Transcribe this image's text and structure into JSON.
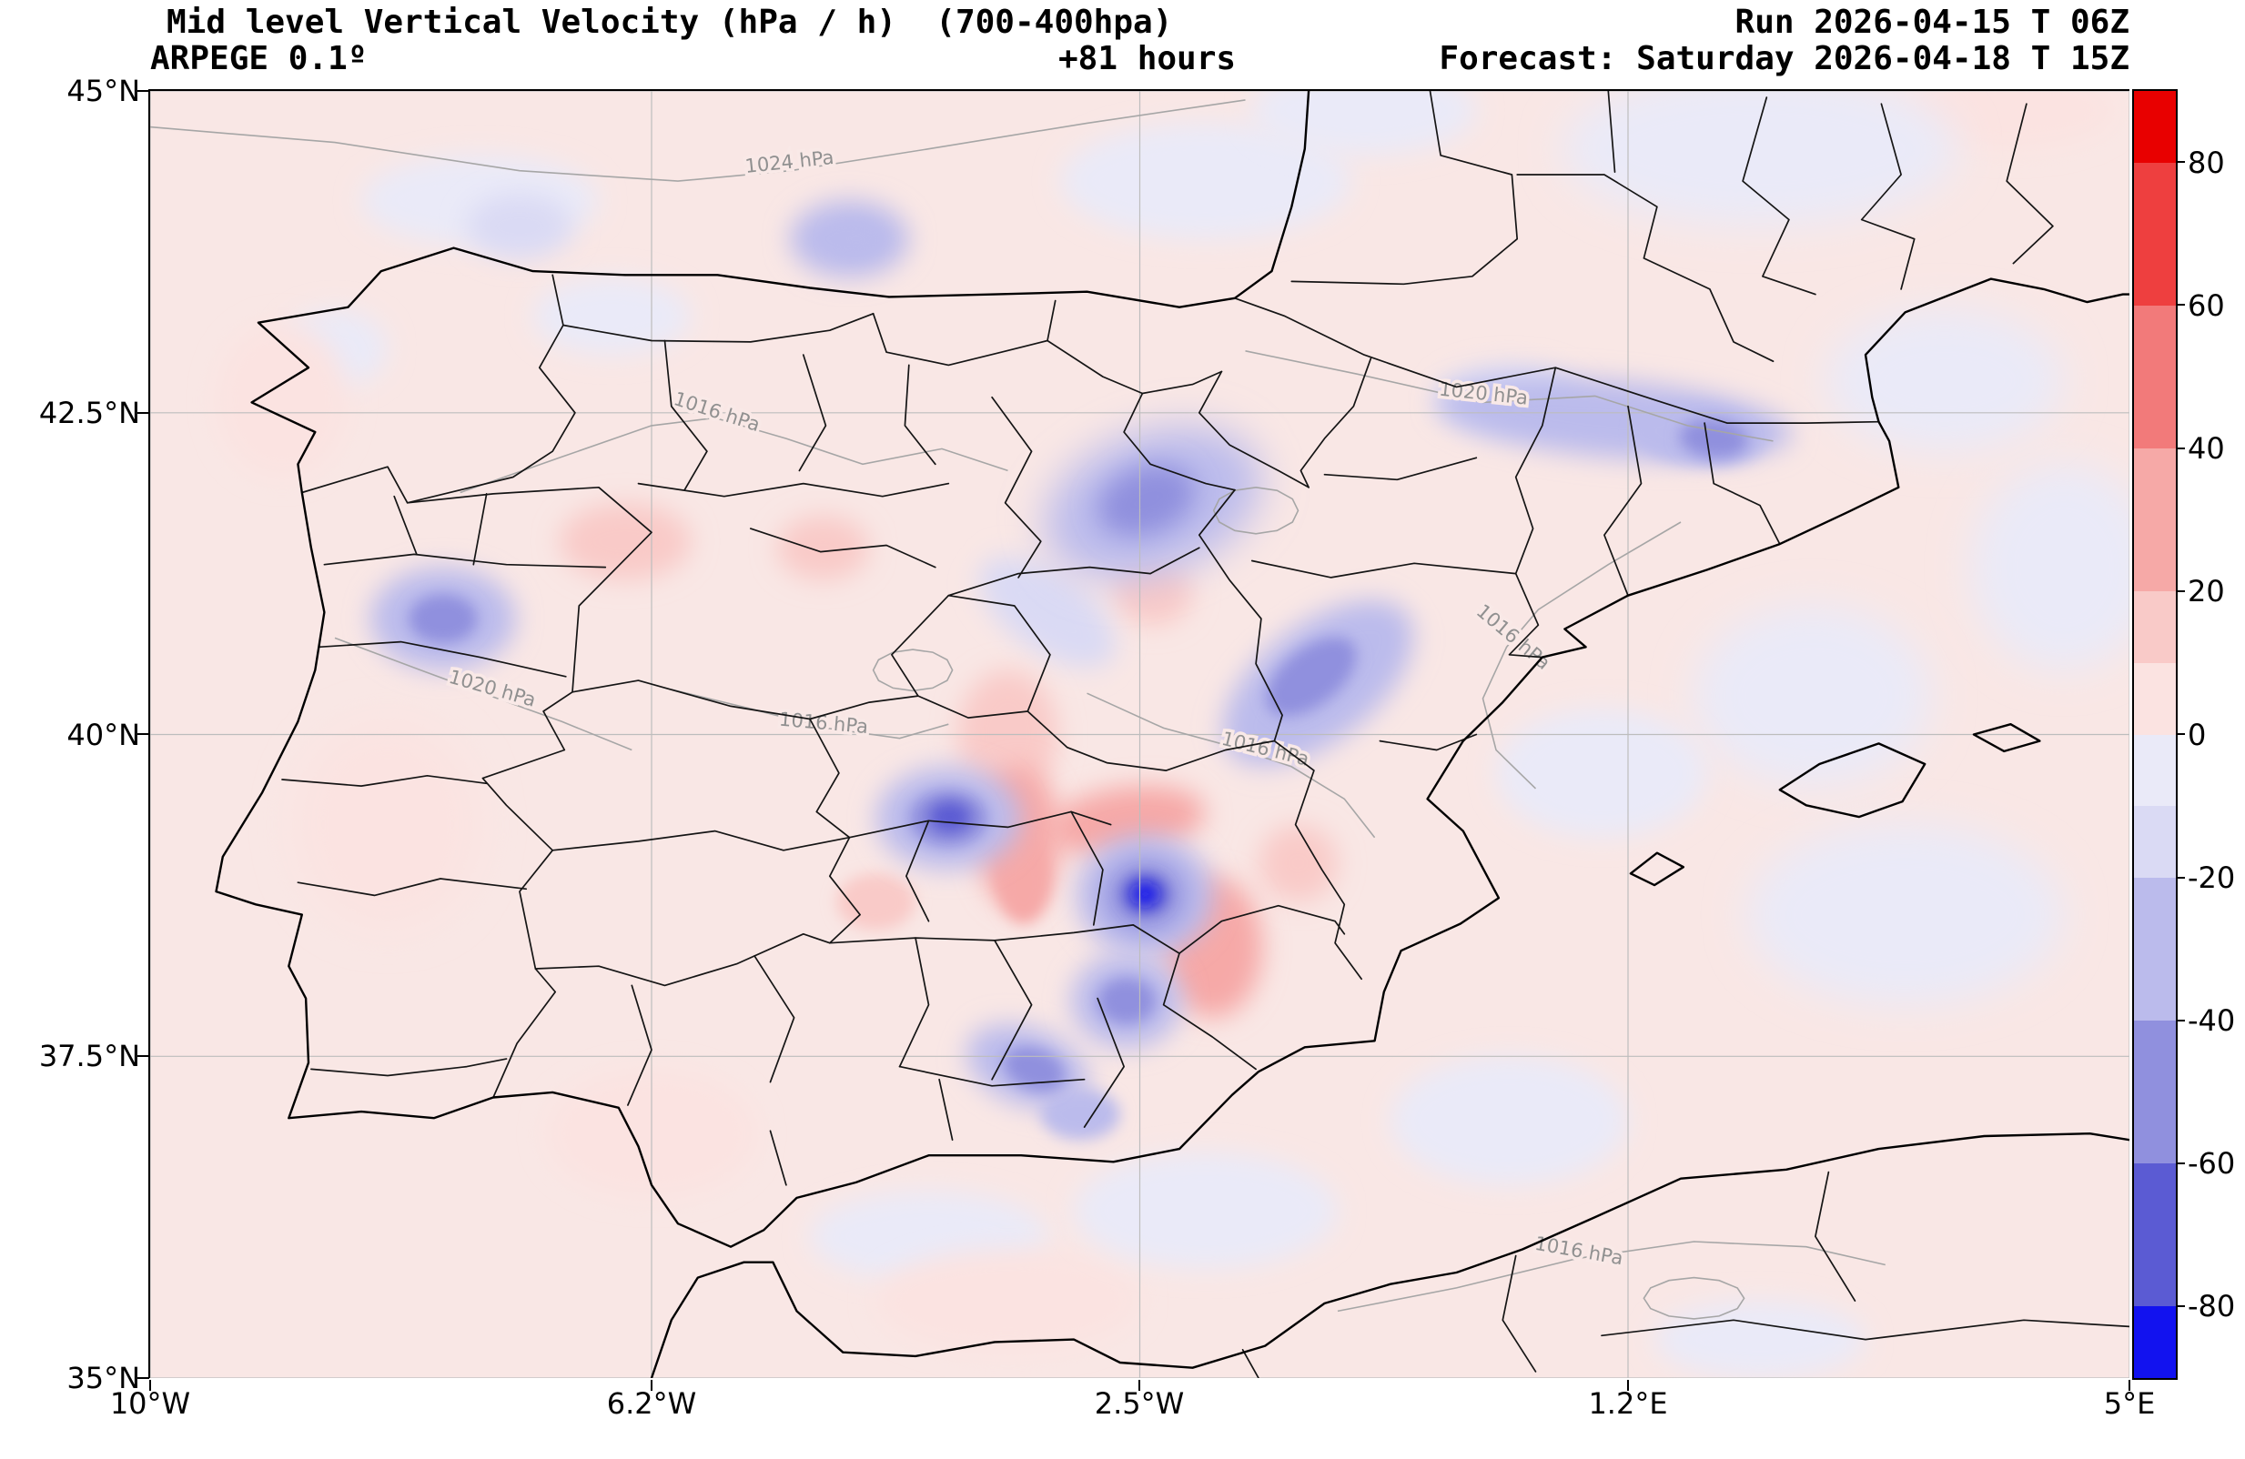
{
  "header": {
    "title": "Mid level Vertical Velocity (hPa / h)  (700-400hpa)",
    "model": "ARPEGE 0.1º",
    "lead": "+81 hours",
    "run": "Run 2026-04-15 T 06Z",
    "forecast": "Forecast: Saturday 2026-04-18 T 15Z"
  },
  "axes": {
    "lat_ticks": [
      "45°N",
      "42.5°N",
      "40°N",
      "37.5°N",
      "35°N"
    ],
    "lat_values": [
      45,
      42.5,
      40,
      37.5,
      35
    ],
    "lon_ticks": [
      "10°W",
      "6.2°W",
      "2.5°W",
      "1.2°E",
      "5°E"
    ],
    "lon_values": [
      -10,
      -6.2,
      -2.5,
      1.2,
      5
    ]
  },
  "colorbar": {
    "ticks": [
      80,
      60,
      40,
      20,
      0,
      -20,
      -40,
      -60,
      -80
    ],
    "range": [
      -90,
      90
    ],
    "segments": [
      {
        "from": 80,
        "to": 90,
        "color": "#e80000"
      },
      {
        "from": 60,
        "to": 80,
        "color": "#ee3f3f"
      },
      {
        "from": 40,
        "to": 60,
        "color": "#f27a7a"
      },
      {
        "from": 20,
        "to": 40,
        "color": "#f6a9a7"
      },
      {
        "from": 10,
        "to": 20,
        "color": "#f9cac8"
      },
      {
        "from": 0,
        "to": 10,
        "color": "#fbe3e1"
      },
      {
        "from": -10,
        "to": 0,
        "color": "#eaeaf8"
      },
      {
        "from": -20,
        "to": -10,
        "color": "#dadaf4"
      },
      {
        "from": -40,
        "to": -20,
        "color": "#bbbbec"
      },
      {
        "from": -60,
        "to": -40,
        "color": "#9090de"
      },
      {
        "from": -80,
        "to": -60,
        "color": "#5b5bd3"
      },
      {
        "from": -90,
        "to": -80,
        "color": "#1212ef"
      }
    ]
  },
  "map": {
    "background": "#f9e7e5",
    "grid_color": "#bdbdbd",
    "isobar_color": "#a6a6a6",
    "isobar_label_color": "#909090",
    "border_color": "#151515",
    "coast_color": "#000000"
  },
  "isobar_labels": [
    {
      "text": "1024 hPa",
      "lon": -5.15,
      "lat": 44.4,
      "rot": -6
    },
    {
      "text": "1016 hPa",
      "lon": -5.72,
      "lat": 42.46,
      "rot": 18
    },
    {
      "text": "1020 hPa",
      "lon": 0.1,
      "lat": 42.6,
      "rot": 6
    },
    {
      "text": "1016 hPa",
      "lon": 0.3,
      "lat": 40.72,
      "rot": 40
    },
    {
      "text": "1020 hPa",
      "lon": -7.42,
      "lat": 40.31,
      "rot": 16
    },
    {
      "text": "1016 hPa",
      "lon": -4.9,
      "lat": 40.04,
      "rot": 5
    },
    {
      "text": "1016 hPa",
      "lon": -1.56,
      "lat": 39.84,
      "rot": 14
    },
    {
      "text": "1016 hPa",
      "lon": 0.82,
      "lat": 35.94,
      "rot": 10
    }
  ],
  "chart_data": {
    "type": "heatmap",
    "title": "Mid level Vertical Velocity (hPa / h) (700-400hpa)",
    "units": "hPa/h",
    "model": "ARPEGE 0.1º",
    "run": "2026-04-15 T 06Z",
    "valid": "Saturday 2026-04-18 T 15Z",
    "lead_hours": 81,
    "region": "Iberian Peninsula",
    "lon_range": [
      -10,
      5
    ],
    "lat_range": [
      35,
      45
    ],
    "grid": true,
    "legend_position": "right-colorbar",
    "colorbar_ticks": [
      80,
      60,
      40,
      20,
      0,
      -20,
      -40,
      -60,
      -80
    ],
    "pressure_contours_hPa": [
      1016,
      1020,
      1024
    ],
    "feature_format": [
      "lon",
      "lat",
      "rx_deg",
      "ry_deg",
      "rot_deg",
      "value_hPa_per_h"
    ],
    "features": [
      [
        -0.8,
        44.85,
        0.85,
        0.35,
        0,
        -8
      ],
      [
        2.2,
        44.55,
        1.5,
        0.6,
        0,
        -8
      ],
      [
        3.6,
        42.75,
        0.9,
        0.55,
        0,
        -8
      ],
      [
        4.5,
        41.3,
        0.7,
        0.8,
        0,
        -7
      ],
      [
        2.6,
        40.3,
        0.9,
        0.7,
        0,
        -6
      ],
      [
        3.3,
        38.6,
        1.2,
        0.7,
        0,
        -8
      ],
      [
        1.0,
        39.7,
        0.8,
        0.5,
        0,
        -7
      ],
      [
        -2.0,
        44.3,
        1.1,
        0.45,
        0,
        -7
      ],
      [
        -7.5,
        44.15,
        0.9,
        0.35,
        0,
        -6
      ],
      [
        -2.0,
        36.3,
        1.0,
        0.45,
        0,
        -7
      ],
      [
        -4.1,
        36.1,
        0.9,
        0.35,
        0,
        -6
      ],
      [
        2.2,
        35.3,
        0.8,
        0.3,
        0,
        -6
      ],
      [
        -6.5,
        43.25,
        0.6,
        0.3,
        0,
        -9
      ],
      [
        -8.6,
        43.0,
        0.4,
        0.3,
        0,
        -6
      ],
      [
        0.3,
        37.0,
        0.9,
        0.5,
        0,
        -6
      ],
      [
        4.1,
        44.85,
        0.8,
        0.3,
        0,
        7
      ],
      [
        -8.2,
        39.3,
        0.7,
        0.8,
        0,
        6
      ],
      [
        -6.2,
        36.9,
        0.8,
        0.5,
        0,
        6
      ],
      [
        -3.5,
        35.6,
        1.0,
        0.4,
        0,
        6
      ],
      [
        -9.0,
        42.6,
        0.5,
        0.6,
        0,
        6
      ],
      [
        -6.4,
        41.5,
        0.5,
        0.3,
        0,
        12
      ],
      [
        -4.9,
        41.45,
        0.35,
        0.25,
        0,
        11
      ],
      [
        -2.4,
        41.1,
        0.3,
        0.25,
        0,
        14
      ],
      [
        -4.5,
        38.7,
        0.3,
        0.22,
        0,
        12
      ],
      [
        -3.5,
        40.0,
        0.38,
        0.5,
        0,
        18
      ],
      [
        -3.42,
        39.2,
        0.32,
        0.55,
        0,
        26
      ],
      [
        -3.38,
        38.85,
        0.2,
        0.32,
        0,
        34
      ],
      [
        -2.6,
        39.33,
        0.6,
        0.26,
        -8,
        22
      ],
      [
        -1.95,
        38.35,
        0.38,
        0.55,
        0,
        22
      ],
      [
        -1.3,
        39.0,
        0.3,
        0.3,
        0,
        14
      ],
      [
        -7.2,
        43.95,
        0.4,
        0.25,
        0,
        -12
      ],
      [
        -4.7,
        43.85,
        0.45,
        0.3,
        0,
        -22
      ],
      [
        -4.65,
        43.85,
        0.2,
        0.14,
        0,
        -35
      ],
      [
        -7.78,
        40.9,
        0.55,
        0.4,
        0,
        -28
      ],
      [
        -7.78,
        40.9,
        0.26,
        0.19,
        0,
        -45
      ],
      [
        -2.4,
        41.8,
        0.85,
        0.55,
        -20,
        -28
      ],
      [
        -2.45,
        41.82,
        0.38,
        0.26,
        -20,
        -48
      ],
      [
        -3.2,
        40.95,
        0.6,
        0.3,
        35,
        -15
      ],
      [
        -1.15,
        40.4,
        0.85,
        0.45,
        -38,
        -28
      ],
      [
        -1.2,
        40.45,
        0.4,
        0.22,
        -38,
        -45
      ],
      [
        -3.95,
        39.35,
        0.55,
        0.4,
        0,
        -35
      ],
      [
        -3.95,
        39.35,
        0.3,
        0.22,
        0,
        -52
      ],
      [
        -3.94,
        39.36,
        0.16,
        0.12,
        0,
        -68
      ],
      [
        -2.46,
        38.75,
        0.52,
        0.47,
        0,
        -35
      ],
      [
        -2.46,
        38.75,
        0.3,
        0.27,
        0,
        -55
      ],
      [
        -2.46,
        38.76,
        0.17,
        0.15,
        0,
        -70
      ],
      [
        -2.46,
        38.76,
        0.09,
        0.08,
        0,
        -85
      ],
      [
        -2.6,
        37.93,
        0.42,
        0.37,
        0,
        -35
      ],
      [
        -2.6,
        37.93,
        0.22,
        0.18,
        0,
        -52
      ],
      [
        -3.35,
        37.42,
        0.48,
        0.3,
        20,
        -28
      ],
      [
        -3.3,
        37.4,
        0.24,
        0.16,
        20,
        -45
      ],
      [
        -2.95,
        37.05,
        0.3,
        0.2,
        0,
        -22
      ],
      [
        1.1,
        42.45,
        1.35,
        0.3,
        5,
        -22
      ],
      [
        1.75,
        42.33,
        0.5,
        0.24,
        5,
        -38
      ],
      [
        1.85,
        42.3,
        0.26,
        0.15,
        5,
        -52
      ],
      [
        0.3,
        42.62,
        0.55,
        0.25,
        0,
        -15
      ]
    ]
  }
}
